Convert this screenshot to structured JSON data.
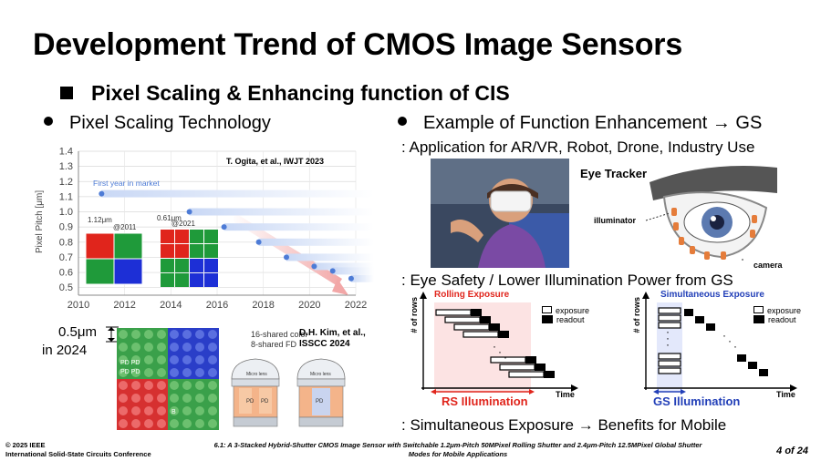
{
  "slide": {
    "title": "Development Trend of CMOS Image Sensors",
    "subtitle": "Pixel Scaling & Enhancing function of CIS"
  },
  "left": {
    "heading": "Pixel Scaling Technology",
    "chart_ref": "T. Ogita, et al., IWJT 2023",
    "pitch_label": "0.5μm",
    "year_label": "in 2024",
    "layout_ref_line1": "D.H. Kim, et al.,",
    "layout_ref_line2": "ISSCC 2024",
    "shared_line1": "16-shared color",
    "shared_line2": "8-shared FD"
  },
  "chart_data": {
    "type": "line",
    "ylabel": "Pixel Pitch [μm]",
    "xlabel": "",
    "x_ticks": [
      "2010",
      "2012",
      "2014",
      "2016",
      "2018",
      "2020",
      "2022"
    ],
    "y_ticks": [
      "0.5",
      "0.6",
      "0.7",
      "0.8",
      "0.9",
      "1.0",
      "1.1",
      "1.2",
      "1.3",
      "1.4"
    ],
    "xlim": [
      2010,
      2022
    ],
    "ylim": [
      0.45,
      1.4
    ],
    "series": [
      {
        "points": [
          {
            "x": 2011.0,
            "y": 1.12
          },
          {
            "x": 2014.8,
            "y": 1.0
          },
          {
            "x": 2016.3,
            "y": 0.9
          },
          {
            "x": 2017.8,
            "y": 0.8
          },
          {
            "x": 2019.0,
            "y": 0.7
          },
          {
            "x": 2020.2,
            "y": 0.64
          },
          {
            "x": 2021.0,
            "y": 0.61
          },
          {
            "x": 2021.8,
            "y": 0.56
          }
        ]
      }
    ],
    "annotations": [
      "First year in market",
      "1.12μm",
      "@2011",
      "0.61μm",
      "@2021"
    ],
    "grid": true
  },
  "right": {
    "heading": "Example of Function Enhancement",
    "arrow": "→",
    "heading_suffix": "GS",
    "line1": ": Application for AR/VR, Robot, Drone, Industry Use",
    "eye_tracker": "Eye Tracker",
    "illuminator": "illuminator",
    "camera": "camera",
    "line2": ": Eye Safety / Lower Illumination Power from GS",
    "rs_title": "Rolling Exposure",
    "gs_title": "Simultaneous Exposure",
    "rows_label": "# of rows",
    "exposure": "exposure",
    "readout": "readout",
    "time": "Time",
    "rs_illum": "RS Illumination",
    "gs_illum": "GS Illumination",
    "line3_prefix": ": Simultaneous Exposure",
    "line3_suffix": "Benefits for Mobile"
  },
  "footer": {
    "copyright": "© 2025 IEEE",
    "conference": "International Solid-State Circuits Conference",
    "caption": "6.1: A 3-Stacked Hybrid-Shutter CMOS Image Sensor with Switchable 1.2μm-Pitch 50MPixel Rolling Shutter and 2.4μm-Pitch 12.5MPixel Global Shutter Modes for Mobile Applications",
    "page": "4 of 24"
  },
  "colors": {
    "red_pixel": "#e0251c",
    "green_pixel": "#1f9a3a",
    "blue_pixel": "#1d2fd6",
    "rs_red": "#e0251c",
    "gs_blue": "#2340b8",
    "rs_band": "#fce3e3",
    "gs_band": "#e3e8fb"
  }
}
